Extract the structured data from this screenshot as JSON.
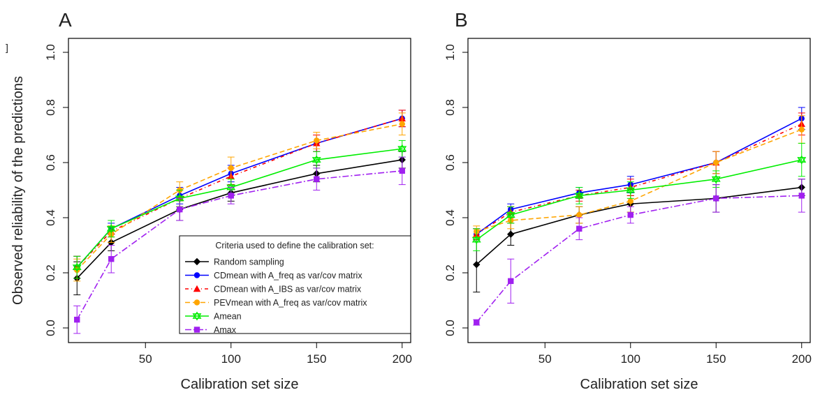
{
  "figure": {
    "ylabel": "Observed reliability of the predictions",
    "legend_title": "Criteria used to define the calibration set:",
    "stray_mark": "]"
  },
  "series_styles": [
    {
      "name": "Random sampling",
      "color": "#000000",
      "dash": "",
      "marker": "diamond"
    },
    {
      "name": "CDmean with A_freq as var/cov matrix",
      "color": "#0000ff",
      "dash": "",
      "marker": "circle"
    },
    {
      "name": "CDmean with A_IBS as var/cov matrix",
      "color": "#ff0000",
      "dash": "5,4,1,4",
      "marker": "triangle"
    },
    {
      "name": "PEVmean with A_freq as var/cov matrix",
      "color": "#ffa500",
      "dash": "7,4",
      "marker": "circle"
    },
    {
      "name": "Amean",
      "color": "#00ee00",
      "dash": "",
      "marker": "star"
    },
    {
      "name": "Amax",
      "color": "#a020f0",
      "dash": "9,3,2,3",
      "marker": "square"
    }
  ],
  "chart_data": [
    {
      "type": "line",
      "panel_label": "A",
      "title": "",
      "xlabel": "Calibration set size",
      "ylabel": "Observed reliability of the predictions",
      "xlim": [
        5,
        205
      ],
      "ylim": [
        0,
        1
      ],
      "xticks": [
        50,
        100,
        150,
        200
      ],
      "yticks": [
        0.0,
        0.2,
        0.4,
        0.6,
        0.8,
        1.0
      ],
      "grid": false,
      "legend": "bottom-right",
      "x": [
        10,
        30,
        70,
        100,
        150,
        200
      ],
      "series": [
        {
          "name": "Random sampling",
          "values": [
            0.18,
            0.31,
            0.43,
            0.49,
            0.56,
            0.61
          ],
          "error": [
            0.06,
            0.03,
            0.04,
            0.03,
            0.03,
            0.03
          ]
        },
        {
          "name": "CDmean with A_freq as var/cov matrix",
          "values": [
            0.22,
            0.36,
            0.48,
            0.56,
            0.67,
            0.76
          ],
          "error": [
            0.04,
            0.02,
            0.03,
            0.03,
            0.03,
            0.03
          ]
        },
        {
          "name": "CDmean with A_IBS as var/cov matrix",
          "values": [
            0.22,
            0.35,
            0.47,
            0.55,
            0.67,
            0.76
          ],
          "error": [
            0.04,
            0.02,
            0.03,
            0.03,
            0.03,
            0.03
          ]
        },
        {
          "name": "PEVmean with A_freq as var/cov matrix",
          "values": [
            0.21,
            0.34,
            0.5,
            0.58,
            0.68,
            0.74
          ],
          "error": [
            0.04,
            0.03,
            0.03,
            0.04,
            0.03,
            0.04
          ]
        },
        {
          "name": "Amean",
          "values": [
            0.22,
            0.36,
            0.47,
            0.51,
            0.61,
            0.65
          ],
          "error": [
            0.04,
            0.03,
            0.03,
            0.03,
            0.03,
            0.03
          ]
        },
        {
          "name": "Amax",
          "values": [
            0.03,
            0.25,
            0.43,
            0.48,
            0.54,
            0.57
          ],
          "error": [
            0.05,
            0.05,
            0.04,
            0.03,
            0.04,
            0.05
          ]
        }
      ]
    },
    {
      "type": "line",
      "panel_label": "B",
      "title": "",
      "xlabel": "Calibration set size",
      "ylabel": "",
      "xlim": [
        5,
        205
      ],
      "ylim": [
        0,
        1
      ],
      "xticks": [
        50,
        100,
        150,
        200
      ],
      "yticks": [
        0.0,
        0.2,
        0.4,
        0.6,
        0.8,
        1.0
      ],
      "grid": false,
      "legend": "",
      "x": [
        10,
        30,
        70,
        100,
        150,
        200
      ],
      "series": [
        {
          "name": "Random sampling",
          "values": [
            0.23,
            0.34,
            0.41,
            0.45,
            0.47,
            0.51
          ],
          "error": [
            0.1,
            0.04,
            0.03,
            0.03,
            0.05,
            0.03
          ]
        },
        {
          "name": "CDmean with A_freq as var/cov matrix",
          "values": [
            0.34,
            0.43,
            0.49,
            0.52,
            0.6,
            0.76
          ],
          "error": [
            0.02,
            0.02,
            0.02,
            0.03,
            0.04,
            0.04
          ]
        },
        {
          "name": "CDmean with A_IBS as var/cov matrix",
          "values": [
            0.34,
            0.42,
            0.48,
            0.51,
            0.6,
            0.74
          ],
          "error": [
            0.02,
            0.02,
            0.02,
            0.03,
            0.04,
            0.04
          ]
        },
        {
          "name": "PEVmean with A_freq as var/cov matrix",
          "values": [
            0.35,
            0.39,
            0.41,
            0.46,
            0.6,
            0.72
          ],
          "error": [
            0.02,
            0.03,
            0.03,
            0.04,
            0.04,
            0.05
          ]
        },
        {
          "name": "Amean",
          "values": [
            0.32,
            0.41,
            0.48,
            0.5,
            0.54,
            0.61
          ],
          "error": [
            0.04,
            0.03,
            0.03,
            0.03,
            0.03,
            0.06
          ]
        },
        {
          "name": "Amax",
          "values": [
            0.02,
            0.17,
            0.36,
            0.41,
            0.47,
            0.48
          ],
          "error": [
            0.01,
            0.08,
            0.04,
            0.03,
            0.05,
            0.06
          ]
        }
      ]
    }
  ]
}
